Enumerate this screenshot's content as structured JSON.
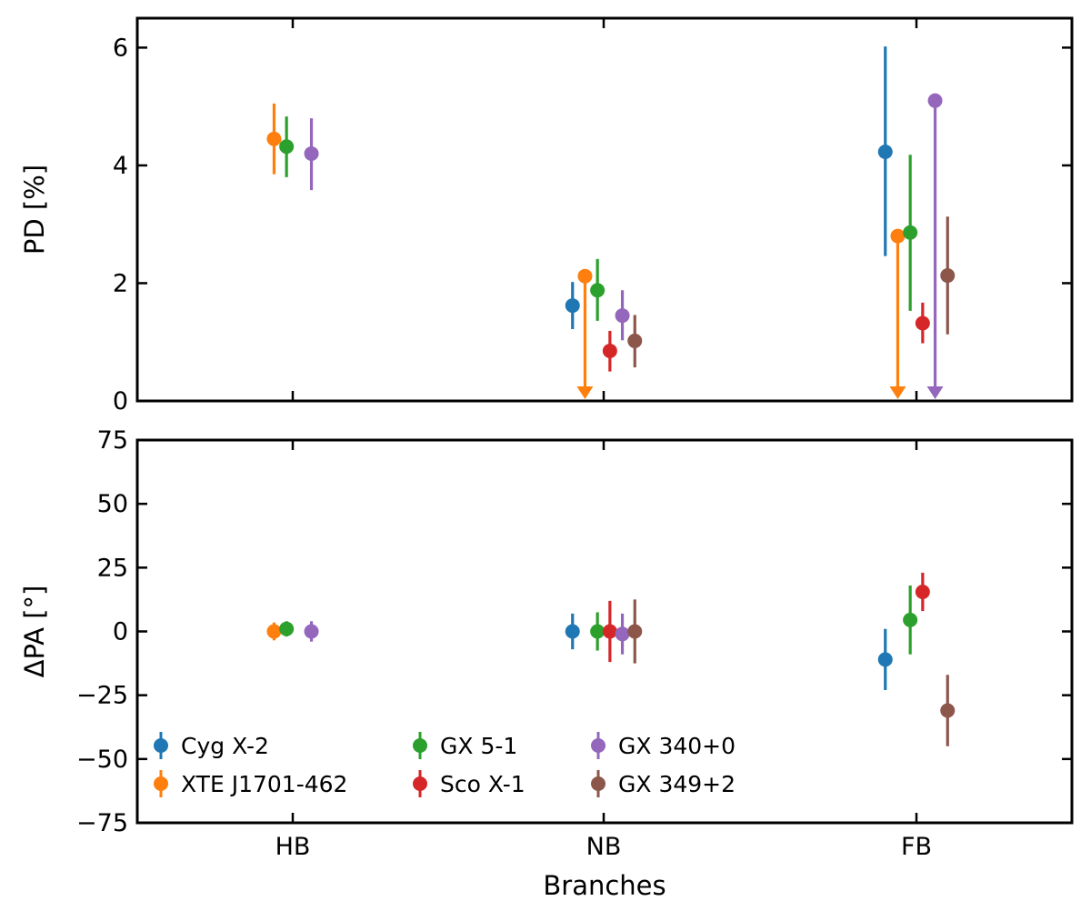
{
  "chart_data": {
    "type": "errorbar",
    "xlabel": "Branches",
    "categories": [
      "HB",
      "NB",
      "FB"
    ],
    "series": [
      {
        "name": "Cyg X-2",
        "color": "#1f77b4"
      },
      {
        "name": "XTE J1701-462",
        "color": "#ff7f0e"
      },
      {
        "name": "GX 5-1",
        "color": "#2ca02c"
      },
      {
        "name": "Sco X-1",
        "color": "#d62728"
      },
      {
        "name": "GX 340+0",
        "color": "#9467bd"
      },
      {
        "name": "GX 349+2",
        "color": "#8c564b"
      }
    ],
    "panels": [
      {
        "ylabel": "PD [%]",
        "ylim": [
          0,
          6.5
        ],
        "yticks": [
          0,
          2,
          4,
          6
        ],
        "ytick_labels": [
          "0",
          "2",
          "4",
          "6"
        ],
        "points": [
          {
            "series": "XTE J1701-462",
            "category": "HB",
            "y": 4.45,
            "lo": 3.85,
            "hi": 5.05
          },
          {
            "series": "GX 5-1",
            "category": "HB",
            "y": 4.32,
            "lo": 3.8,
            "hi": 4.83
          },
          {
            "series": "GX 340+0",
            "category": "HB",
            "y": 4.2,
            "lo": 3.58,
            "hi": 4.8
          },
          {
            "series": "Cyg X-2",
            "category": "NB",
            "y": 1.62,
            "lo": 1.22,
            "hi": 2.02
          },
          {
            "series": "XTE J1701-462",
            "category": "NB",
            "y": 2.12,
            "upper_limit": true
          },
          {
            "series": "GX 5-1",
            "category": "NB",
            "y": 1.88,
            "lo": 1.36,
            "hi": 2.41
          },
          {
            "series": "Sco X-1",
            "category": "NB",
            "y": 0.85,
            "lo": 0.5,
            "hi": 1.19
          },
          {
            "series": "GX 340+0",
            "category": "NB",
            "y": 1.45,
            "lo": 1.03,
            "hi": 1.88
          },
          {
            "series": "GX 349+2",
            "category": "NB",
            "y": 1.02,
            "lo": 0.57,
            "hi": 1.46
          },
          {
            "series": "Cyg X-2",
            "category": "FB",
            "y": 4.23,
            "lo": 2.46,
            "hi": 6.02
          },
          {
            "series": "XTE J1701-462",
            "category": "FB",
            "y": 2.8,
            "upper_limit": true
          },
          {
            "series": "GX 5-1",
            "category": "FB",
            "y": 2.86,
            "lo": 1.53,
            "hi": 4.18
          },
          {
            "series": "Sco X-1",
            "category": "FB",
            "y": 1.32,
            "lo": 0.98,
            "hi": 1.67
          },
          {
            "series": "GX 340+0",
            "category": "FB",
            "y": 5.1,
            "upper_limit": true
          },
          {
            "series": "GX 349+2",
            "category": "FB",
            "y": 2.13,
            "lo": 1.13,
            "hi": 3.13
          }
        ]
      },
      {
        "ylabel": "ΔPA [°]",
        "ylim": [
          -75,
          75
        ],
        "yticks": [
          -75,
          -50,
          -25,
          0,
          25,
          50,
          75
        ],
        "ytick_labels": [
          "−75",
          "−50",
          "−25",
          "0",
          "25",
          "50",
          "75"
        ],
        "points": [
          {
            "series": "XTE J1701-462",
            "category": "HB",
            "y": 0,
            "lo": -3.5,
            "hi": 3.5
          },
          {
            "series": "GX 5-1",
            "category": "HB",
            "y": 1,
            "lo": -2,
            "hi": 4
          },
          {
            "series": "GX 340+0",
            "category": "HB",
            "y": 0,
            "lo": -4,
            "hi": 4
          },
          {
            "series": "Cyg X-2",
            "category": "NB",
            "y": 0,
            "lo": -7,
            "hi": 7
          },
          {
            "series": "GX 5-1",
            "category": "NB",
            "y": 0,
            "lo": -7.5,
            "hi": 7.5
          },
          {
            "series": "Sco X-1",
            "category": "NB",
            "y": 0,
            "lo": -12,
            "hi": 12
          },
          {
            "series": "GX 340+0",
            "category": "NB",
            "y": -1,
            "lo": -9,
            "hi": 7
          },
          {
            "series": "GX 349+2",
            "category": "NB",
            "y": 0,
            "lo": -12.5,
            "hi": 12.5
          },
          {
            "series": "Cyg X-2",
            "category": "FB",
            "y": -11,
            "lo": -23,
            "hi": 1
          },
          {
            "series": "GX 5-1",
            "category": "FB",
            "y": 4.5,
            "lo": -9,
            "hi": 18
          },
          {
            "series": "Sco X-1",
            "category": "FB",
            "y": 15.5,
            "lo": 8,
            "hi": 23
          },
          {
            "series": "GX 349+2",
            "category": "FB",
            "y": -31,
            "lo": -45,
            "hi": -17
          }
        ]
      }
    ],
    "legend": {
      "location": "lower-left",
      "columns": 3
    }
  }
}
